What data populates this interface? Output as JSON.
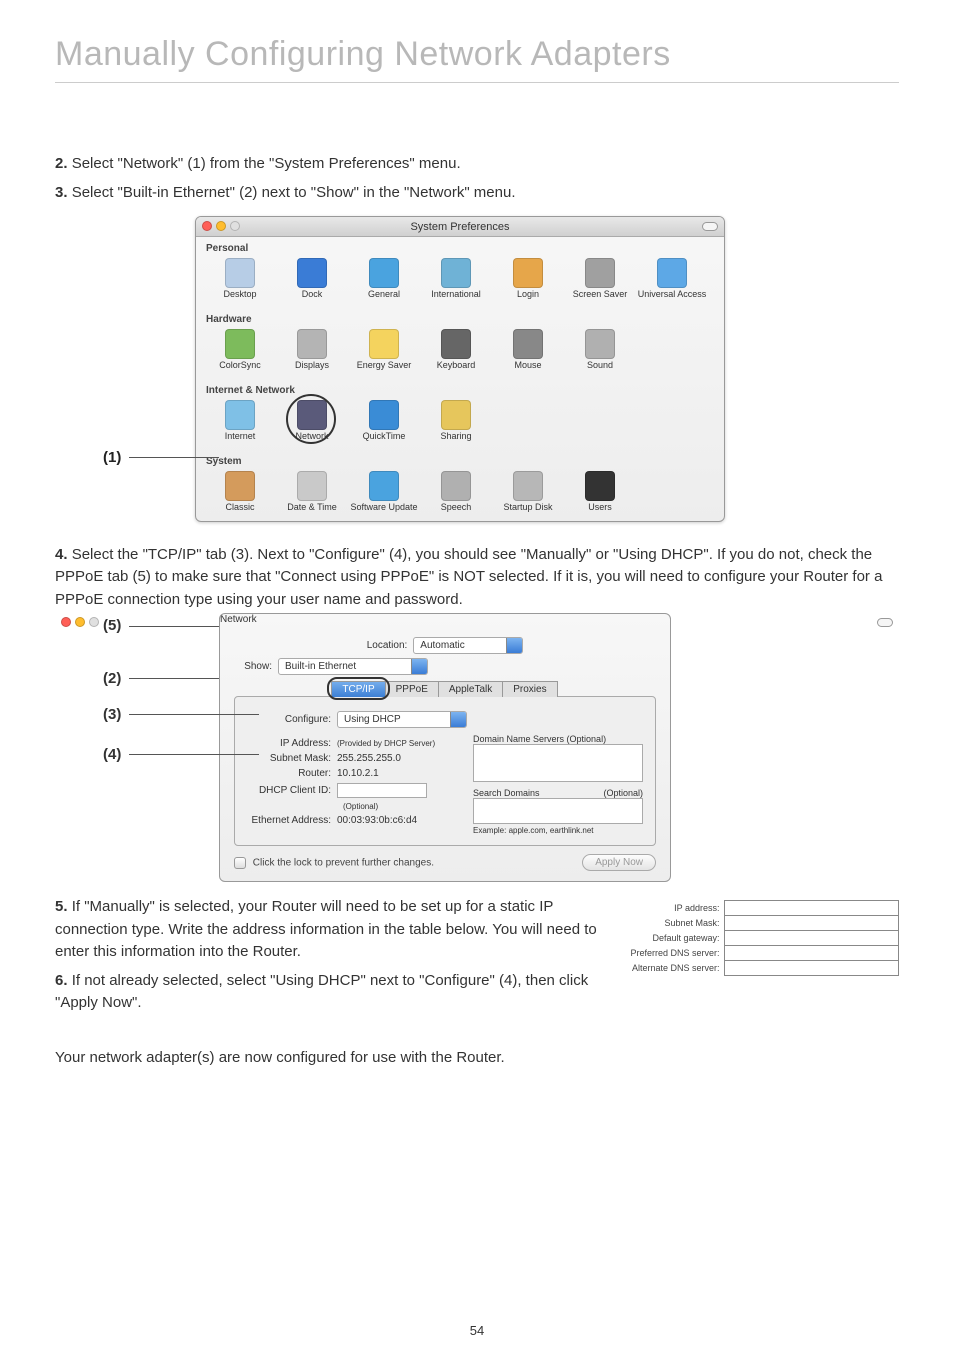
{
  "page_title": "Manually Configuring Network Adapters",
  "page_number": "54",
  "steps": {
    "s2": {
      "num": "2.",
      "text": "Select \"Network\" (1) from the \"System Preferences\" menu."
    },
    "s3": {
      "num": "3.",
      "text": "Select \"Built-in Ethernet\" (2) next to \"Show\" in the \"Network\" menu."
    },
    "s4": {
      "num": "4.",
      "text": "Select the \"TCP/IP\" tab (3). Next to \"Configure\" (4), you should see \"Manually\" or \"Using DHCP\". If you do not, check the PPPoE tab (5) to make sure that \"Connect using PPPoE\" is NOT selected. If it is, you will need to configure your Router for a PPPoE connection type using your user name and password."
    },
    "s5": {
      "num": "5.",
      "text": "If \"Manually\" is selected, your Router will need to be set up for a static IP connection type. Write the address information in the table below. You will need to enter this information into the Router."
    },
    "s6": {
      "num": "6.",
      "text": "If not already selected, select \"Using DHCP\" next to \"Configure\" (4), then click \"Apply Now\"."
    },
    "closing": "Your network adapter(s) are now configured for use with the Router."
  },
  "callouts": {
    "c1": "(1)",
    "c2": "(2)",
    "c3": "(3)",
    "c4": "(4)",
    "c5": "(5)"
  },
  "sysprefs": {
    "title": "System Preferences",
    "sections": {
      "personal": {
        "label": "Personal",
        "items": [
          {
            "label": "Desktop",
            "icon_color": "#b7cde6"
          },
          {
            "label": "Dock",
            "icon_color": "#3a7cd6"
          },
          {
            "label": "General",
            "icon_color": "#4aa3df"
          },
          {
            "label": "International",
            "icon_color": "#6fb2d6"
          },
          {
            "label": "Login",
            "icon_color": "#e6a64a"
          },
          {
            "label": "Screen Saver",
            "icon_color": "#a0a0a0"
          },
          {
            "label": "Universal Access",
            "icon_color": "#5da8e6"
          }
        ]
      },
      "hardware": {
        "label": "Hardware",
        "items": [
          {
            "label": "ColorSync",
            "icon_color": "#7dbb5c"
          },
          {
            "label": "Displays",
            "icon_color": "#b4b4b4"
          },
          {
            "label": "Energy Saver",
            "icon_color": "#f4d35e"
          },
          {
            "label": "Keyboard",
            "icon_color": "#666666"
          },
          {
            "label": "Mouse",
            "icon_color": "#888888"
          },
          {
            "label": "Sound",
            "icon_color": "#b0b0b0"
          }
        ]
      },
      "internet": {
        "label": "Internet & Network",
        "items": [
          {
            "label": "Internet",
            "icon_color": "#7fc0e6"
          },
          {
            "label": "Network",
            "icon_color": "#5a5a7a",
            "circled": true
          },
          {
            "label": "QuickTime",
            "icon_color": "#3a8cd6"
          },
          {
            "label": "Sharing",
            "icon_color": "#e6c65c"
          }
        ]
      },
      "system": {
        "label": "System",
        "items": [
          {
            "label": "Classic",
            "icon_color": "#d49b5c"
          },
          {
            "label": "Date & Time",
            "icon_color": "#c9c9c9"
          },
          {
            "label": "Software Update",
            "icon_color": "#4aa3df"
          },
          {
            "label": "Speech",
            "icon_color": "#b0b0b0"
          },
          {
            "label": "Startup Disk",
            "icon_color": "#b7b7b7"
          },
          {
            "label": "Users",
            "icon_color": "#333333"
          }
        ]
      }
    }
  },
  "network": {
    "title": "Network",
    "location_label": "Location:",
    "location_value": "Automatic",
    "show_label": "Show:",
    "show_value": "Built-in Ethernet",
    "tabs": [
      "TCP/IP",
      "PPPoE",
      "AppleTalk",
      "Proxies"
    ],
    "active_tab": "TCP/IP",
    "configure_label": "Configure:",
    "configure_value": "Using DHCP",
    "dns_label": "Domain Name Servers",
    "dns_optional": "(Optional)",
    "ip_label": "IP Address:",
    "ip_hint": "(Provided by DHCP Server)",
    "subnet_label": "Subnet Mask:",
    "subnet_value": "255.255.255.0",
    "router_label": "Router:",
    "router_value": "10.10.2.1",
    "search_label": "Search Domains",
    "search_optional": "(Optional)",
    "dhcp_client_label": "DHCP Client ID:",
    "dhcp_client_hint": "(Optional)",
    "eth_label": "Ethernet Address:",
    "eth_value": "00:03:93:0b:c6:d4",
    "example_text": "Example: apple.com, earthlink.net",
    "lock_text": "Click the lock to prevent further changes.",
    "apply_btn": "Apply Now"
  },
  "iptable": {
    "rows": [
      "IP address:",
      "Subnet Mask:",
      "Default gateway:",
      "Preferred DNS server:",
      "Alternate DNS server:"
    ]
  },
  "colors": {
    "title_gray": "#b8b8b8",
    "text": "#333333",
    "aqua_blue": "#3a7cd6"
  }
}
